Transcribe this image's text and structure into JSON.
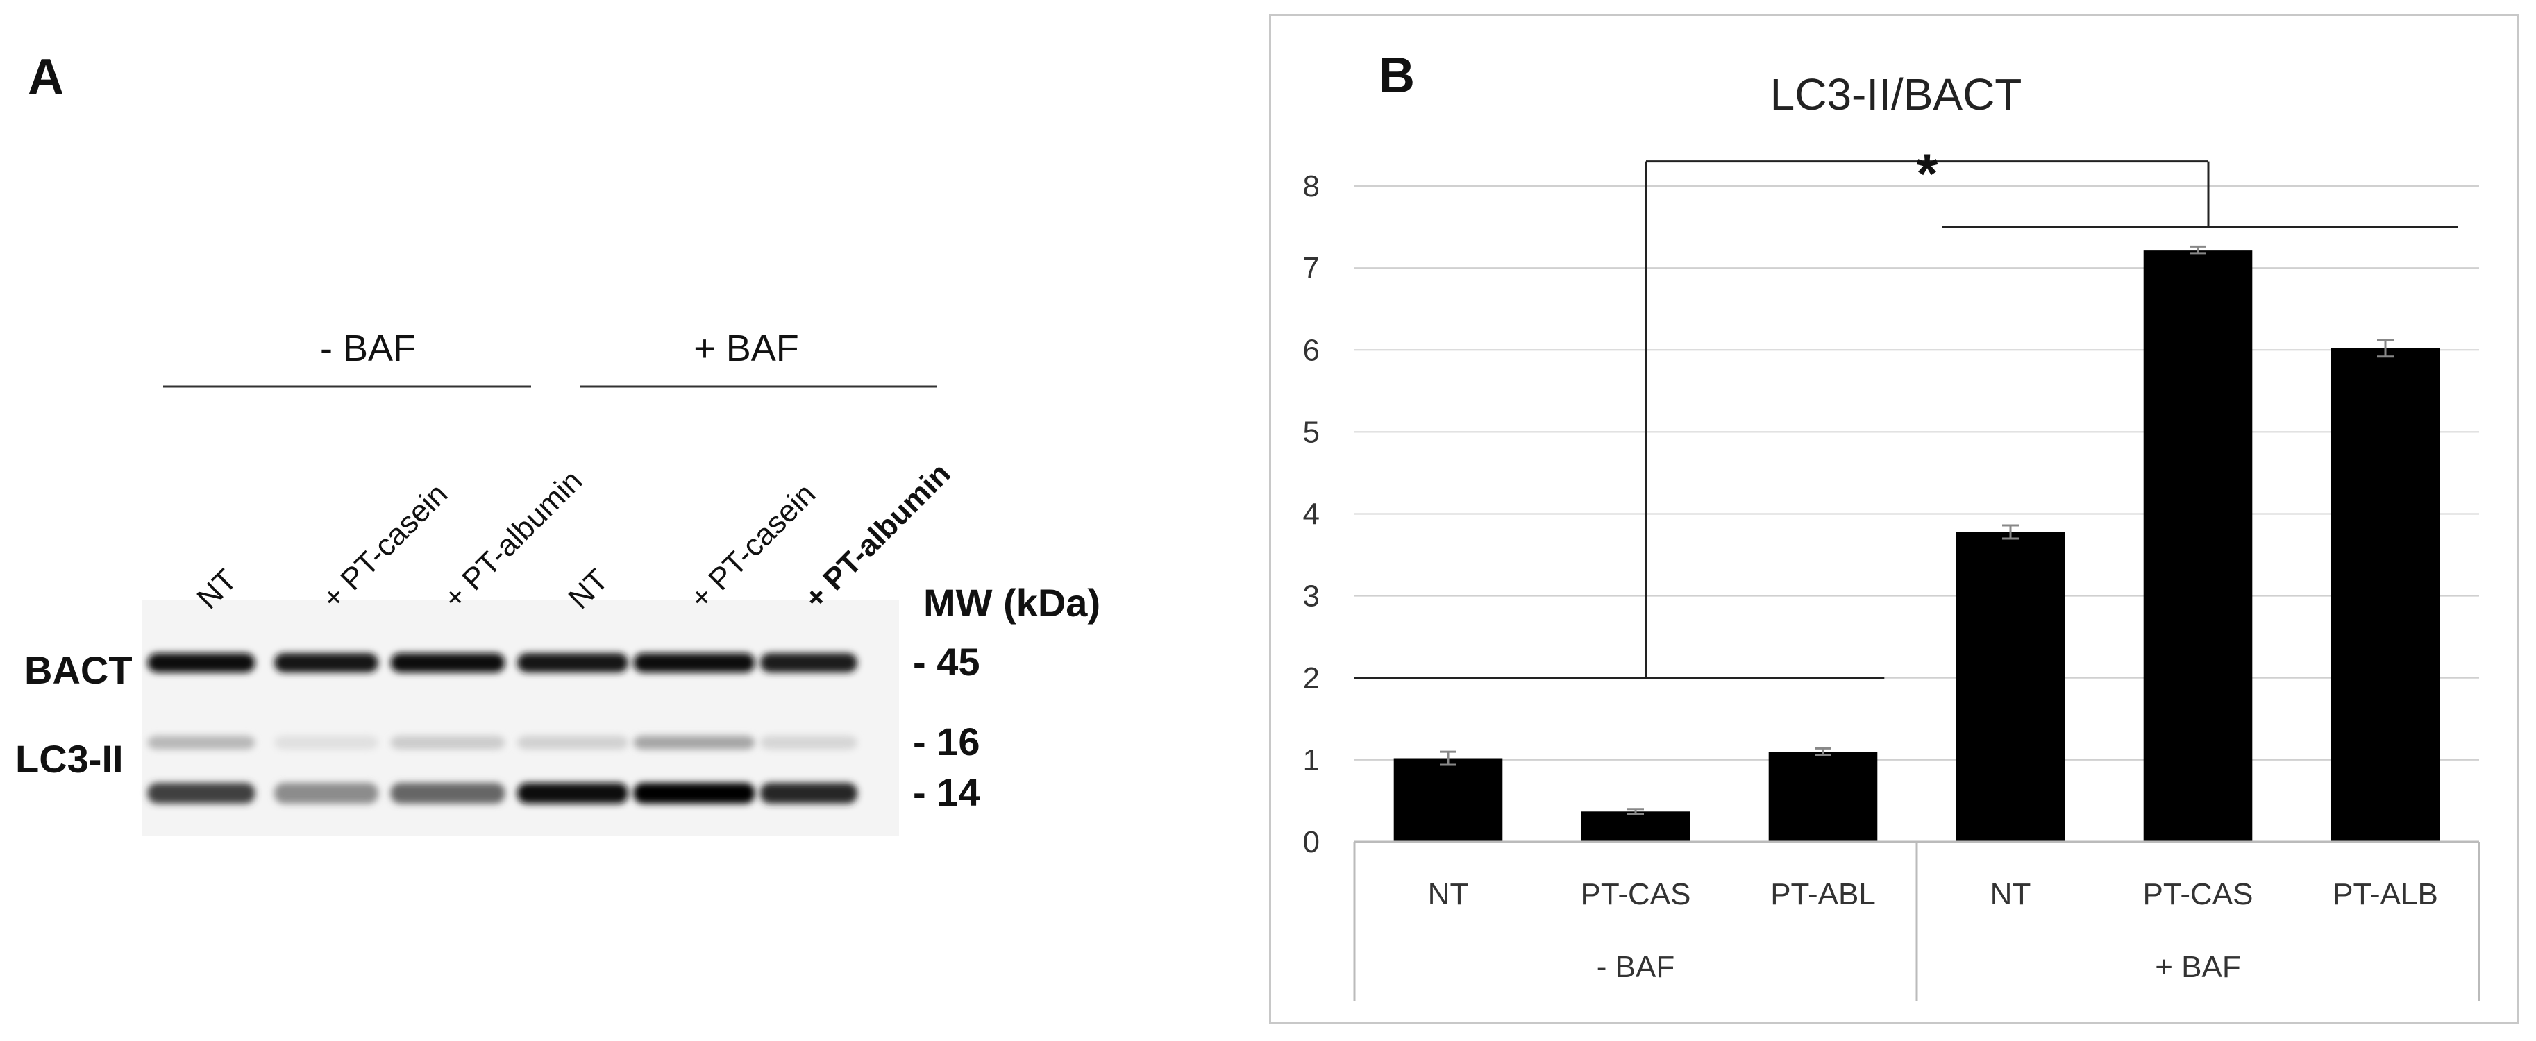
{
  "panel_a": {
    "letter": "A",
    "groups": [
      {
        "label": "- BAF",
        "lanes": [
          0,
          1,
          2
        ]
      },
      {
        "label": "+ BAF",
        "lanes": [
          3,
          4,
          5
        ]
      }
    ],
    "lanes": [
      "NT",
      "+ PT-casein",
      "+ PT-albumin",
      "NT",
      "+ PT-casein",
      "+ PT-albumin"
    ],
    "mw_header": "MW (kDa)",
    "rows": [
      {
        "label": "BACT",
        "mw": "- 45",
        "intensities": [
          0.95,
          0.9,
          0.95,
          0.92,
          0.97,
          0.88
        ]
      },
      {
        "label": "",
        "mw": "- 16",
        "intensities": [
          0.28,
          0.12,
          0.2,
          0.18,
          0.35,
          0.16
        ]
      },
      {
        "label": "LC3-II",
        "mw": "- 14",
        "intensities": [
          0.75,
          0.45,
          0.6,
          0.97,
          1.0,
          0.85
        ]
      }
    ]
  },
  "panel_b": {
    "letter": "B",
    "chart_data": {
      "type": "bar",
      "title": "LC3-II/BACT",
      "categories": [
        "NT",
        "PT-CAS",
        "PT-ABL",
        "NT",
        "PT-CAS",
        "PT-ALB"
      ],
      "groups": [
        {
          "label": "- BAF",
          "span": [
            0,
            2
          ]
        },
        {
          "label": "+ BAF",
          "span": [
            3,
            5
          ]
        }
      ],
      "values": [
        1.02,
        0.37,
        1.1,
        3.78,
        7.22,
        6.02
      ],
      "errors": [
        0.08,
        0.03,
        0.04,
        0.08,
        0.04,
        0.1
      ],
      "ylim": [
        0,
        8
      ],
      "yticks": [
        0,
        1,
        2,
        3,
        4,
        5,
        6,
        7,
        8
      ],
      "grid": true,
      "significance": {
        "symbol": "*",
        "left_bracket_level": 2,
        "right_bracket_level": 7.5,
        "top_level": 8.3
      },
      "bar_color": "#000000"
    }
  }
}
